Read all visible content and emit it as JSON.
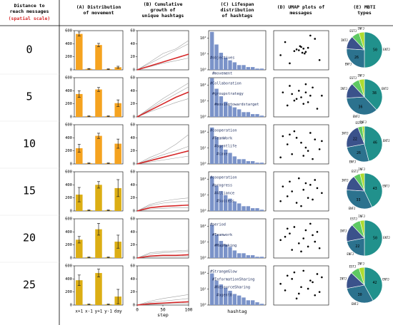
{
  "header": {
    "label": [
      "Distance to",
      "reach messages"
    ],
    "scale": "(spatial scale)"
  },
  "panels": {
    "A": {
      "type": "bar",
      "title": [
        "(A) Distribution",
        "of movement"
      ],
      "categories": [
        "x+1",
        "x-1",
        "y+1",
        "y-1",
        "day"
      ],
      "ylim": [
        0,
        600
      ],
      "yticks": [
        0,
        200,
        400,
        600
      ]
    },
    "B": {
      "type": "line",
      "title": [
        "(B) Cumulative",
        "growth of",
        "unique hashtags"
      ],
      "x": [
        0,
        25,
        50,
        75,
        100
      ],
      "xlim": [
        0,
        100
      ],
      "xticks": [
        0,
        50,
        100
      ],
      "xlabel": "step",
      "ylim": [
        0,
        60
      ],
      "yticks": [
        0,
        20,
        40,
        60
      ]
    },
    "C": {
      "type": "bar",
      "title": [
        "(C) Lifespan",
        "distribution",
        "of hashtags"
      ],
      "xlabel": "hashtag",
      "log": true,
      "color": "#7b93c9",
      "ylim": [
        1,
        300
      ],
      "yticks": [
        {
          "value": 1,
          "label": "10⁰"
        },
        {
          "value": 10,
          "label": "10¹"
        },
        {
          "value": 100,
          "label": "10²"
        }
      ]
    },
    "D": {
      "type": "scatter",
      "title": [
        "(D) UMAP plots of",
        "messages"
      ],
      "xlim": [
        -1.2,
        1.2
      ],
      "ylim": [
        -1.2,
        1.2
      ]
    },
    "E": {
      "type": "pie",
      "title": [
        "(E) MBTI",
        "types"
      ],
      "colors": [
        "#21918c",
        "#2c728e",
        "#3b528b",
        "#5ec962",
        "#addc30"
      ]
    }
  },
  "rows": [
    {
      "label": "0",
      "A": {
        "color": "#f5a320",
        "values": [
          550,
          15,
          380,
          10,
          40
        ],
        "errors": [
          30,
          5,
          25,
          5,
          15
        ]
      },
      "B": {
        "mean": {
          "color": "#d62728",
          "values": [
            0,
            6,
            12,
            18,
            24
          ]
        },
        "lines": [
          {
            "color": "#a0a0a0",
            "values": [
              0,
              10,
              20,
              30,
              40
            ]
          },
          {
            "color": "#a0a0a0",
            "values": [
              0,
              5,
              10,
              14,
              18
            ]
          },
          {
            "color": "#a0a0a0",
            "values": [
              0,
              12,
              25,
              32,
              45
            ]
          }
        ]
      },
      "C": {
        "values": [
          250,
          40,
          12,
          6,
          4,
          3,
          2,
          2,
          1.5,
          1.5,
          1.2,
          1.2
        ],
        "annotations": [
          "#objectives",
          "#movement"
        ]
      },
      "D": {
        "x": [
          0.1,
          -0.1,
          0.2,
          0.0,
          -0.2,
          0.15,
          0.3,
          -0.3,
          0.05,
          -0.05,
          0.6,
          -0.7,
          0.8,
          -0.5,
          0.4,
          -0.9
        ],
        "y": [
          0.1,
          0.0,
          -0.1,
          0.2,
          0.05,
          -0.2,
          0.15,
          -0.05,
          -0.15,
          0.25,
          0.7,
          0.5,
          -0.6,
          -0.8,
          0.9,
          -0.3
        ]
      },
      "E": {
        "values": [
          50,
          26,
          12,
          7,
          5
        ],
        "labels": [
          "ENTJ",
          "ENFJ",
          "INTJ",
          "ESTJ",
          "INFJ"
        ]
      }
    },
    {
      "label": "5",
      "A": {
        "color": "#f5a320",
        "values": [
          350,
          10,
          420,
          10,
          210
        ],
        "errors": [
          50,
          5,
          30,
          5,
          50
        ]
      },
      "B": {
        "mean": {
          "color": "#d62728",
          "values": [
            0,
            10,
            20,
            30,
            38
          ]
        },
        "lines": [
          {
            "color": "#a0a0a0",
            "values": [
              0,
              14,
              28,
              40,
              52
            ]
          },
          {
            "color": "#a0a0a0",
            "values": [
              0,
              8,
              15,
              22,
              28
            ]
          },
          {
            "color": "#a0a0a0",
            "values": [
              0,
              12,
              24,
              35,
              46
            ]
          }
        ]
      },
      "C": {
        "values": [
          280,
          60,
          20,
          9,
          5,
          4,
          3,
          2,
          2,
          1.5,
          1.5,
          1.2
        ],
        "annotations": [
          "#Collaboration",
          "#groupstrategy",
          "#movingtowardstarget"
        ]
      },
      "D": {
        "x": [
          0.0,
          0.2,
          -0.3,
          0.4,
          -0.1,
          0.3,
          -0.4,
          0.1,
          -0.2,
          0.5,
          -0.6,
          0.7,
          -0.8,
          0.9,
          0.2,
          -0.5
        ],
        "y": [
          0.0,
          0.3,
          -0.2,
          0.1,
          0.4,
          -0.3,
          0.2,
          -0.4,
          -0.1,
          0.6,
          -0.5,
          -0.7,
          0.3,
          0.1,
          0.8,
          0.7
        ]
      },
      "E": {
        "values": [
          38,
          36,
          14,
          7,
          5
        ],
        "labels": [
          "ENTJ",
          "ENFJ",
          "INTJ",
          "ESTJ",
          "INFJ"
        ]
      }
    },
    {
      "label": "10",
      "A": {
        "color": "#f5a320",
        "values": [
          240,
          10,
          430,
          10,
          310
        ],
        "errors": [
          60,
          5,
          40,
          5,
          70
        ]
      },
      "B": {
        "mean": {
          "color": "#d62728",
          "values": [
            0,
            5,
            10,
            15,
            20
          ]
        },
        "lines": [
          {
            "color": "#a0a0a0",
            "values": [
              0,
              10,
              18,
              30,
              45
            ]
          },
          {
            "color": "#a0a0a0",
            "values": [
              0,
              3,
              6,
              9,
              12
            ]
          },
          {
            "color": "#a0a0a0",
            "values": [
              0,
              7,
              14,
              20,
              27
            ]
          }
        ]
      },
      "C": {
        "values": [
          200,
          50,
          15,
          8,
          5,
          3,
          2,
          2,
          1.5,
          1.5,
          1.2,
          1.2
        ],
        "annotations": [
          "#cooperation",
          "#TeamWork",
          "#agentlife",
          "#cave"
        ]
      },
      "D": {
        "x": [
          -0.8,
          -0.4,
          0.0,
          0.4,
          0.8,
          -0.6,
          -0.2,
          0.2,
          0.6,
          -0.9,
          0.1,
          -0.3,
          0.5,
          0.9,
          -0.5,
          0.3
        ],
        "y": [
          0.5,
          -0.6,
          0.1,
          0.7,
          -0.3,
          0.0,
          0.4,
          -0.2,
          0.3,
          -0.8,
          -0.7,
          0.8,
          -0.9,
          0.2,
          0.6,
          -0.4
        ]
      },
      "E": {
        "values": [
          46,
          26,
          22,
          4,
          2
        ],
        "labels": [
          "ENTJ",
          "ENFJ",
          "INTJ",
          "ESTJ",
          "INFJ"
        ]
      }
    },
    {
      "label": "15",
      "A": {
        "color": "#dcae14",
        "values": [
          250,
          10,
          400,
          10,
          350
        ],
        "errors": [
          110,
          5,
          50,
          5,
          130
        ]
      },
      "B": {
        "mean": {
          "color": "#d62728",
          "values": [
            0,
            5,
            7,
            8,
            9
          ]
        },
        "lines": [
          {
            "color": "#a0a0a0",
            "values": [
              0,
              8,
              12,
              14,
              15
            ]
          },
          {
            "color": "#a0a0a0",
            "values": [
              0,
              3,
              4,
              5,
              5
            ]
          },
          {
            "color": "#a0a0a0",
            "values": [
              0,
              10,
              15,
              18,
              20
            ]
          }
        ]
      },
      "C": {
        "values": [
          150,
          40,
          18,
          10,
          6,
          4,
          3,
          2,
          2,
          1.5,
          1.5,
          1.2
        ],
        "annotations": [
          "#cooperation",
          "#progress",
          "#Alliance",
          "#Success"
        ]
      },
      "D": {
        "x": [
          0.3,
          -0.5,
          0.7,
          -0.2,
          0.1,
          -0.8,
          0.5,
          -0.1,
          0.9,
          -0.6,
          0.2,
          -0.4,
          0.6,
          -0.9,
          0.0,
          0.4
        ],
        "y": [
          -0.4,
          0.6,
          0.2,
          -0.7,
          0.1,
          0.3,
          -0.5,
          0.8,
          -0.1,
          -0.3,
          0.5,
          0.0,
          0.7,
          -0.6,
          -0.9,
          0.4
        ]
      },
      "E": {
        "values": [
          43,
          33,
          14,
          6,
          4
        ],
        "labels": [
          "ENTJ",
          "ENFJ",
          "INTJ",
          "ESTJ",
          "INFJ"
        ]
      }
    },
    {
      "label": "20",
      "A": {
        "color": "#dcae14",
        "values": [
          280,
          10,
          440,
          10,
          250
        ],
        "errors": [
          50,
          5,
          90,
          5,
          100
        ]
      },
      "B": {
        "mean": {
          "color": "#d62728",
          "values": [
            0,
            3,
            4,
            4,
            5
          ]
        },
        "lines": [
          {
            "color": "#a0a0a0",
            "values": [
              0,
              6,
              8,
              9,
              10
            ]
          },
          {
            "color": "#a0a0a0",
            "values": [
              0,
              2,
              3,
              3,
              3
            ]
          },
          {
            "color": "#a0a0a0",
            "values": [
              0,
              8,
              10,
              11,
              12
            ]
          }
        ]
      },
      "C": {
        "values": [
          120,
          30,
          12,
          7,
          5,
          3,
          2,
          2,
          1.5,
          1.5,
          1.2,
          1.2
        ],
        "annotations": [
          "#period",
          "#Teamwork",
          "#MapMaking"
        ]
      },
      "D": {
        "x": [
          -0.3,
          0.6,
          -0.7,
          0.2,
          0.8,
          -0.1,
          0.4,
          -0.5,
          0.0,
          -0.9,
          0.7,
          0.3,
          -0.4,
          0.5,
          -0.6,
          0.1
        ],
        "y": [
          0.7,
          -0.2,
          0.1,
          0.5,
          -0.6,
          -0.3,
          0.9,
          0.3,
          -0.8,
          -0.1,
          0.4,
          -0.5,
          -0.7,
          0.2,
          0.6,
          0.0
        ]
      },
      "E": {
        "values": [
          50,
          22,
          16,
          8,
          4
        ],
        "labels": [
          "ENTJ",
          "ENFJ",
          "INTJ",
          "ESTJ",
          "INFJ"
        ]
      }
    },
    {
      "label": "25",
      "A": {
        "color": "#dcae14",
        "values": [
          380,
          10,
          490,
          10,
          130
        ],
        "errors": [
          80,
          5,
          60,
          5,
          110
        ]
      },
      "B": {
        "mean": {
          "color": "#d62728",
          "values": [
            0,
            2,
            3,
            4,
            5
          ]
        },
        "lines": [
          {
            "color": "#a0a0a0",
            "values": [
              0,
              4,
              6,
              8,
              10
            ]
          },
          {
            "color": "#a0a0a0",
            "values": [
              0,
              1,
              2,
              3,
              3
            ]
          },
          {
            "color": "#a0a0a0",
            "values": [
              0,
              6,
              10,
              13,
              16
            ]
          }
        ]
      },
      "C": {
        "values": [
          100,
          35,
          20,
          12,
          8,
          5,
          4,
          3,
          2,
          2,
          1.5,
          1.2
        ],
        "annotations": [
          "#StrangeGlow",
          "#InformationSharing",
          "#ResourceSharing",
          "#agent8"
        ]
      },
      "D": {
        "x": [
          0.5,
          -0.2,
          0.8,
          -0.6,
          0.1,
          -0.9,
          0.3,
          -0.4,
          0.7,
          -0.1,
          0.0,
          0.6,
          -0.7,
          0.4,
          -0.3,
          0.9
        ],
        "y": [
          0.2,
          -0.8,
          -0.4,
          0.6,
          0.9,
          0.1,
          -0.2,
          0.4,
          0.7,
          -0.5,
          -0.1,
          -0.6,
          -0.3,
          0.3,
          0.8,
          0.5
        ]
      },
      "E": {
        "values": [
          42,
          30,
          15,
          8,
          5
        ],
        "labels": [
          "ENTJ",
          "ENFJ",
          "INTJ",
          "ESTJ",
          "INFJ"
        ]
      }
    }
  ]
}
